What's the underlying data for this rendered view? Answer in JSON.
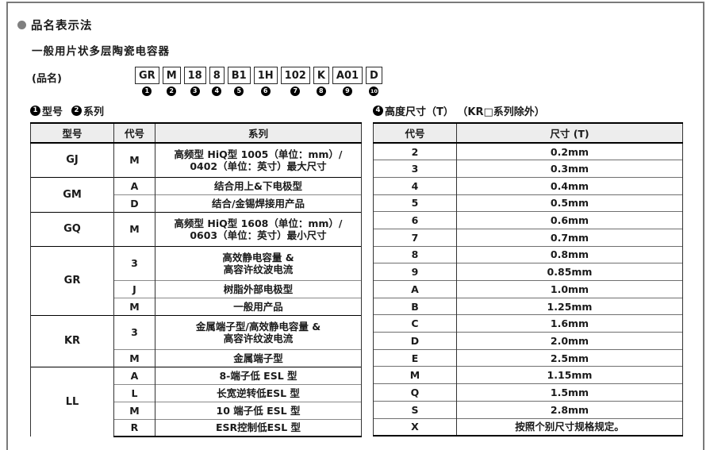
{
  "page": {
    "title": "品名表示法",
    "subtitle": "一般用片状多层陶瓷电容器",
    "part_name_label": "(品名)"
  },
  "part_number": {
    "segments": [
      {
        "code": "GR",
        "num": "1"
      },
      {
        "code": "M",
        "num": "2"
      },
      {
        "code": "18",
        "num": "3"
      },
      {
        "code": "8",
        "num": "4"
      },
      {
        "code": "B1",
        "num": "5"
      },
      {
        "code": "1H",
        "num": "6"
      },
      {
        "code": "102",
        "num": "7"
      },
      {
        "code": "K",
        "num": "8"
      },
      {
        "code": "A01",
        "num": "9"
      },
      {
        "code": "D",
        "num": "10"
      }
    ]
  },
  "type_series_section": {
    "label_parts": [
      {
        "num": "1",
        "text": "型号"
      },
      {
        "num": "2",
        "text": "系列"
      }
    ],
    "table": {
      "headers": [
        "型号",
        "代号",
        "系列"
      ],
      "groups": [
        {
          "model": "GJ",
          "rows": [
            {
              "code": "M",
              "series": [
                "高频型 HiQ型 1005（单位：mm）/",
                "0402（单位：英寸）最大尺寸"
              ]
            }
          ]
        },
        {
          "model": "GM",
          "rows": [
            {
              "code": "A",
              "series": [
                "结合用上&下电极型"
              ]
            },
            {
              "code": "D",
              "series": [
                "结合/金锡焊接用产品"
              ]
            }
          ]
        },
        {
          "model": "GQ",
          "rows": [
            {
              "code": "M",
              "series": [
                "高频型 HiQ型 1608（单位：mm）/",
                "0603（单位：英寸）最小尺寸"
              ]
            }
          ]
        },
        {
          "model": "GR",
          "rows": [
            {
              "code": "3",
              "series": [
                "高效静电容量 &",
                "高容许纹波电流"
              ]
            },
            {
              "code": "J",
              "series": [
                "树脂外部电极型"
              ]
            },
            {
              "code": "M",
              "series": [
                "一般用产品"
              ]
            }
          ]
        },
        {
          "model": "KR",
          "rows": [
            {
              "code": "3",
              "series": [
                "金属端子型/高效静电容量 &",
                "高容许纹波电流"
              ]
            },
            {
              "code": "M",
              "series": [
                "金属端子型"
              ]
            }
          ]
        },
        {
          "model": "LL",
          "rows": [
            {
              "code": "A",
              "series": [
                "8-端子低 ESL 型"
              ]
            },
            {
              "code": "L",
              "series": [
                "长宽逆转低ESL 型"
              ]
            },
            {
              "code": "M",
              "series": [
                "10 端子低 ESL 型"
              ]
            },
            {
              "code": "R",
              "series": [
                "ESR控制低ESL 型"
              ]
            }
          ]
        }
      ]
    }
  },
  "height_section": {
    "label": {
      "num": "4",
      "text": "高度尺寸（T） （KR□系列除外）"
    },
    "table": {
      "headers": [
        "代号",
        "尺寸 (T)"
      ],
      "rows": [
        [
          "2",
          "0.2mm"
        ],
        [
          "3",
          "0.3mm"
        ],
        [
          "4",
          "0.4mm"
        ],
        [
          "5",
          "0.5mm"
        ],
        [
          "6",
          "0.6mm"
        ],
        [
          "7",
          "0.7mm"
        ],
        [
          "8",
          "0.8mm"
        ],
        [
          "9",
          "0.85mm"
        ],
        [
          "A",
          "1.0mm"
        ],
        [
          "B",
          "1.25mm"
        ],
        [
          "C",
          "1.6mm"
        ],
        [
          "D",
          "2.0mm"
        ],
        [
          "E",
          "2.5mm"
        ],
        [
          "M",
          "1.15mm"
        ],
        [
          "Q",
          "1.5mm"
        ],
        [
          "S",
          "2.8mm"
        ],
        [
          "X",
          "按照个别尺寸规格规定。"
        ]
      ]
    }
  },
  "colors": {
    "accent_gray": "#808080",
    "header_bg": "#ededed",
    "border_black": "#000000"
  }
}
